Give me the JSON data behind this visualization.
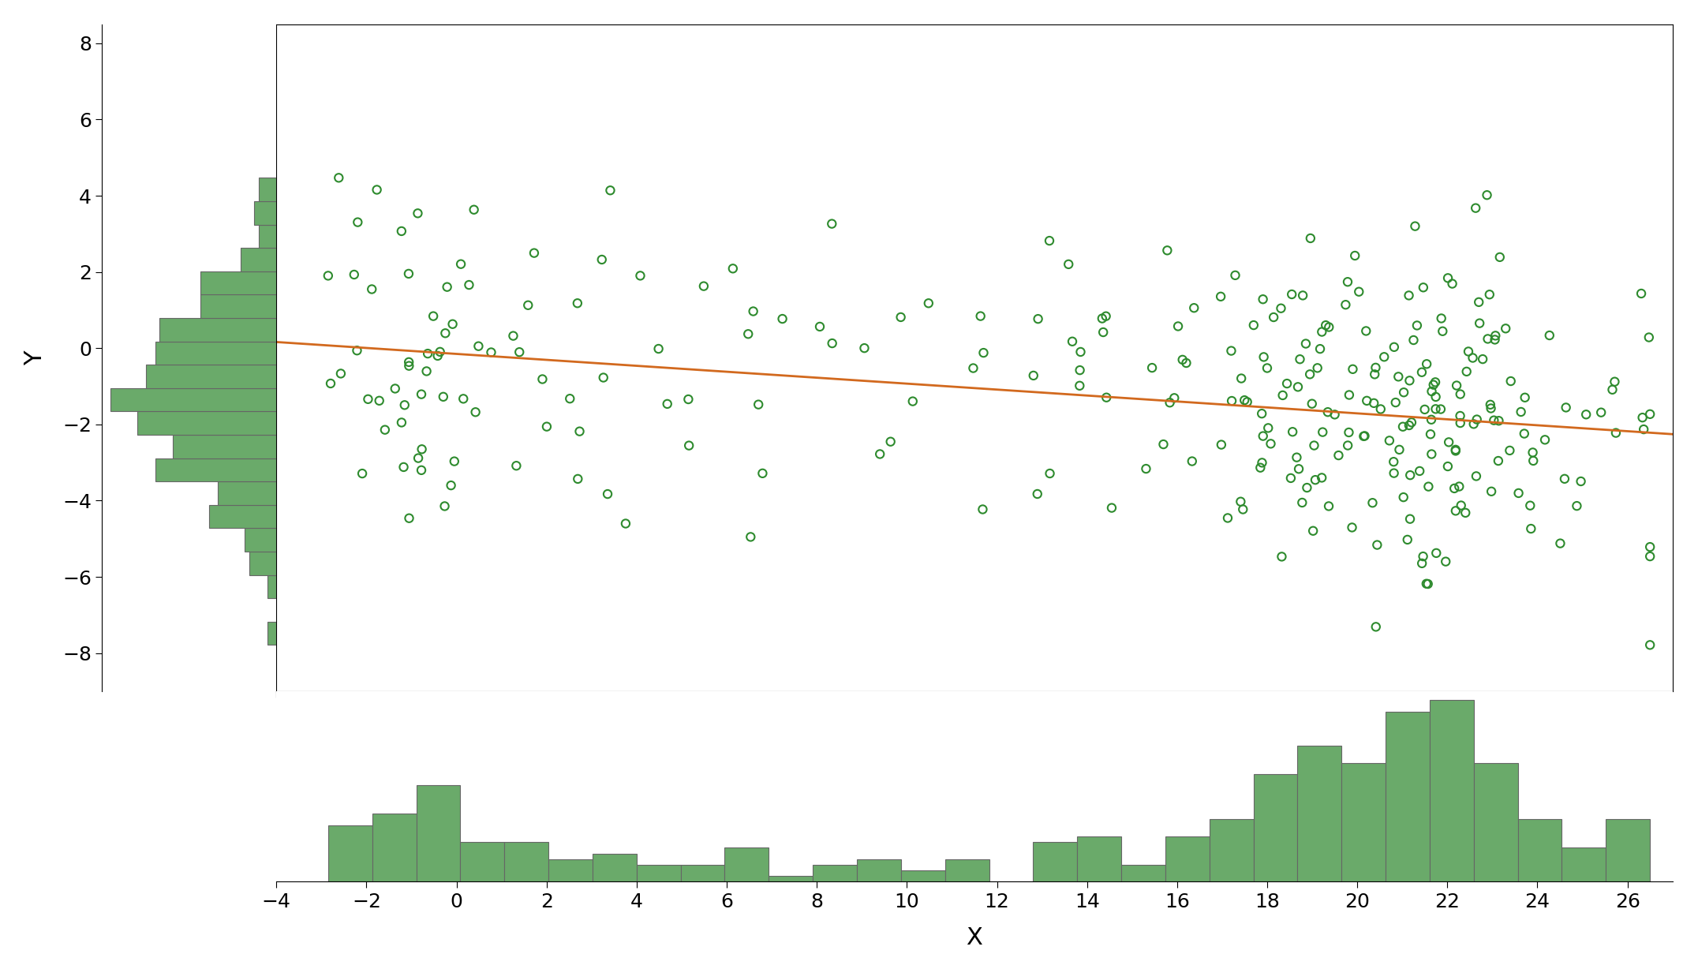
{
  "seed": 42,
  "slope": -0.078,
  "intercept": -0.15,
  "noise_std": 2.0,
  "scatter_edgecolor": "#2e8b2e",
  "scatter_facecolor": "none",
  "scatter_size": 55,
  "scatter_linewidth": 1.5,
  "line_color": "#d2691e",
  "line_width": 2.0,
  "hist_color": "#6aaa6a",
  "hist_edgecolor": "#666666",
  "xlabel": "X",
  "ylabel": "Y",
  "xlabel_fontsize": 22,
  "ylabel_fontsize": 22,
  "tick_fontsize": 18,
  "x_ticks": [
    -4,
    -2,
    0,
    2,
    4,
    6,
    8,
    10,
    12,
    14,
    16,
    18,
    20,
    22,
    24,
    26
  ],
  "y_ticks": [
    -8,
    -6,
    -4,
    -2,
    0,
    2,
    4,
    6,
    8
  ],
  "x_lim": [
    -4,
    27
  ],
  "y_lim": [
    -9,
    8.5
  ],
  "background_color": "#ffffff"
}
